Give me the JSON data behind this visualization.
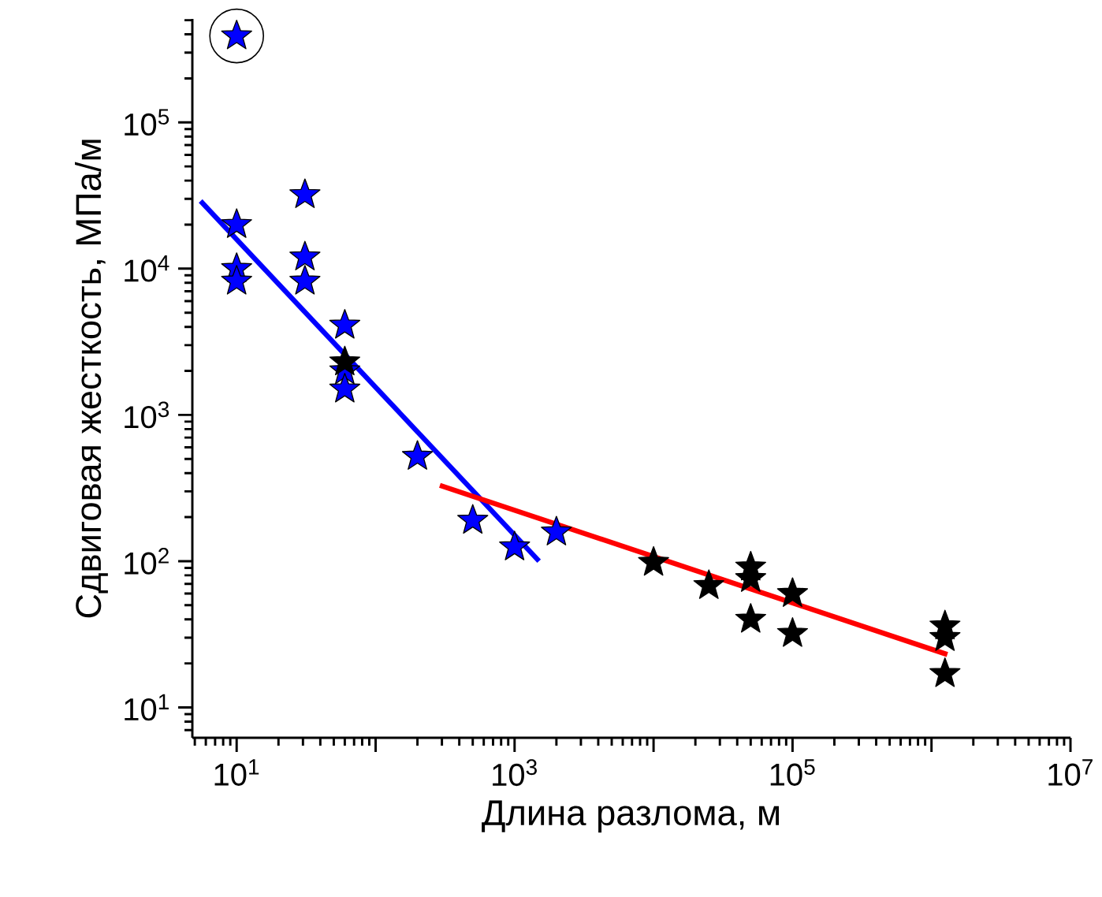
{
  "chart_data": {
    "type": "scatter",
    "xlabel": "Длина разлома, м",
    "ylabel": "Сдвиговая жесткость, МПа/м",
    "log": "xy",
    "marker": "star",
    "xlim": [
      4.8,
      10000000
    ],
    "ylim": [
      6.2,
      510000
    ],
    "xticks": [
      {
        "value": 10,
        "label": "10$^{1}$"
      },
      {
        "value": 100,
        "label": null
      },
      {
        "value": 1000,
        "label": "10$^{3}$"
      },
      {
        "value": 10000,
        "label": null
      },
      {
        "value": 100000,
        "label": "10$^{5}$"
      },
      {
        "value": 1000000,
        "label": null
      },
      {
        "value": 10000000,
        "label": "10$^{7}$"
      }
    ],
    "yticks": [
      {
        "value": 10,
        "label": "10$^{1}$"
      },
      {
        "value": 100,
        "label": "10$^{2}$"
      },
      {
        "value": 1000,
        "label": "10$^{3}$"
      },
      {
        "value": 10000,
        "label": "10$^{4}$"
      },
      {
        "value": 100000,
        "label": "10$^{5}$"
      }
    ],
    "series": [
      {
        "type": "scatter",
        "color": "#0000ff",
        "x": [
          10,
          10,
          10,
          10,
          31,
          31,
          31,
          60,
          60,
          60,
          200,
          500,
          1000,
          2000
        ],
        "values": [
          390000,
          20000,
          10000,
          8200,
          32000,
          12000,
          8200,
          4100,
          2000,
          1500,
          520,
          190,
          125,
          158
        ]
      },
      {
        "type": "scatter",
        "color": "#000000",
        "x": [
          60,
          10000,
          25000,
          50000,
          50000,
          50000,
          100000,
          100000,
          1250000,
          1250000,
          1250000
        ],
        "values": [
          2300,
          98,
          68,
          91,
          76,
          40,
          60,
          32,
          36,
          30,
          17
        ]
      },
      {
        "type": "line",
        "color": "#0000ff",
        "marker": "none",
        "x": [
          5.5,
          1500
        ],
        "values": [
          29000,
          100
        ]
      },
      {
        "type": "line",
        "color": "#ff0000",
        "marker": "none",
        "x": [
          290,
          1300000
        ],
        "values": [
          330,
          23
        ]
      }
    ]
  }
}
